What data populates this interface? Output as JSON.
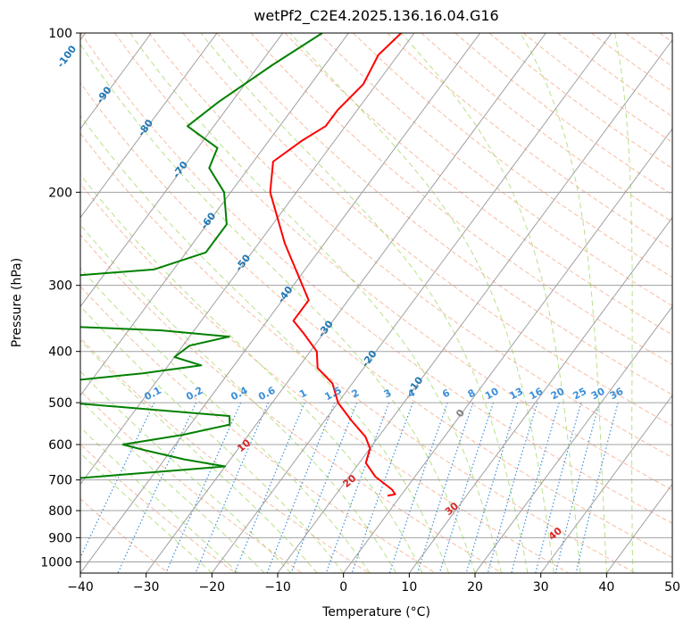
{
  "chart_data": {
    "type": "line",
    "subtype": "skew-T log-p",
    "title": "wetPf2_C2E4.2025.136.16.04.G16",
    "xlabel": "Temperature (°C)",
    "ylabel": "Pressure (hPa)",
    "xlim": [
      -40,
      50
    ],
    "ylim": [
      1050,
      100
    ],
    "y_scale": "log",
    "x_ticks": [
      -40,
      -30,
      -20,
      -10,
      0,
      10,
      20,
      30,
      40,
      50
    ],
    "y_ticks": [
      100,
      200,
      300,
      400,
      500,
      600,
      700,
      800,
      900,
      1000
    ],
    "grid": true,
    "colors": {
      "temperature": "#ff0000",
      "dewpoint": "#008000",
      "isotherm": "#a0a0a0",
      "dry_adiabat": "#f4a582",
      "moist_adiabat": "#a6d96a",
      "mixing_ratio": "#3b8fd9",
      "isotherm_label": "#1f77b4",
      "adiabat_label": "#d62728"
    },
    "series": [
      {
        "name": "temperature",
        "values": [
          [
            100,
            -52
          ],
          [
            110,
            -53
          ],
          [
            125,
            -52
          ],
          [
            140,
            -53
          ],
          [
            150,
            -53
          ],
          [
            160,
            -55
          ],
          [
            175,
            -57
          ],
          [
            200,
            -54
          ],
          [
            250,
            -46
          ],
          [
            290,
            -40
          ],
          [
            320,
            -36
          ],
          [
            350,
            -36
          ],
          [
            370,
            -33
          ],
          [
            400,
            -29
          ],
          [
            430,
            -27
          ],
          [
            460,
            -23
          ],
          [
            500,
            -20
          ],
          [
            540,
            -16
          ],
          [
            580,
            -12
          ],
          [
            610,
            -10
          ],
          [
            650,
            -9
          ],
          [
            690,
            -6
          ],
          [
            730,
            -2
          ],
          [
            745,
            -1
          ],
          [
            750,
            -2
          ]
        ]
      },
      {
        "name": "dewpoint",
        "values": [
          [
            100,
            -64
          ],
          [
            115,
            -68
          ],
          [
            135,
            -72
          ],
          [
            150,
            -74
          ],
          [
            165,
            -67
          ],
          [
            180,
            -66
          ],
          [
            200,
            -61
          ],
          [
            230,
            -57
          ],
          [
            260,
            -57
          ],
          [
            280,
            -63
          ],
          [
            290,
            -78
          ],
          [
            300,
            -86
          ],
          [
            330,
            -85
          ],
          [
            355,
            -79
          ],
          [
            365,
            -55
          ],
          [
            375,
            -44
          ],
          [
            390,
            -49
          ],
          [
            410,
            -50
          ],
          [
            425,
            -45
          ],
          [
            440,
            -53
          ],
          [
            460,
            -67
          ],
          [
            480,
            -70
          ],
          [
            490,
            -73
          ],
          [
            500,
            -61
          ],
          [
            530,
            -35
          ],
          [
            550,
            -34
          ],
          [
            575,
            -40
          ],
          [
            600,
            -48
          ],
          [
            615,
            -44
          ],
          [
            640,
            -37
          ],
          [
            660,
            -30
          ],
          [
            670,
            -36
          ],
          [
            720,
            -66
          ],
          [
            735,
            -82
          ],
          [
            750,
            -90
          ]
        ]
      }
    ],
    "isotherm_labels": [
      "-100",
      "-90",
      "-80",
      "-70",
      "-60",
      "-50",
      "-40",
      "-30",
      "-20",
      "-10",
      "0"
    ],
    "dry_adiabat_labels": [
      "10",
      "20",
      "30",
      "40"
    ],
    "mixing_ratio_labels": [
      "0.1",
      "0.2",
      "0.4",
      "0.6",
      "1",
      "1.5",
      "2",
      "3",
      "4",
      "6",
      "8",
      "10",
      "13",
      "16",
      "20",
      "25",
      "30",
      "36"
    ]
  }
}
